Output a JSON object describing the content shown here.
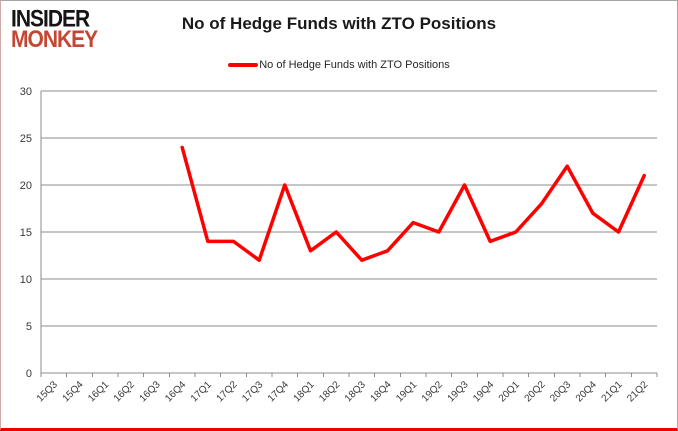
{
  "logo": {
    "line1": "INSIDER",
    "line2": "MONKEY"
  },
  "header": {
    "title": "No of Hedge Funds with ZTO Positions"
  },
  "legend": {
    "label": "No of Hedge Funds with ZTO Positions"
  },
  "colors": {
    "series": "#ff0000",
    "gridline": "#8c8c8c",
    "axis_text": "#3a3a3a",
    "logo_black": "#151515",
    "logo_red": "#c54632",
    "border_bottom": "#ec0000"
  },
  "chart_data": {
    "type": "line",
    "title": "No of Hedge Funds with ZTO Positions",
    "legend_entries": [
      "No of Hedge Funds with ZTO Positions"
    ],
    "legend_position": "top",
    "grid": true,
    "categories": [
      "15Q3",
      "15Q4",
      "16Q1",
      "16Q2",
      "16Q3",
      "16Q4",
      "17Q1",
      "17Q2",
      "17Q3",
      "17Q4",
      "18Q1",
      "18Q2",
      "18Q3",
      "18Q4",
      "19Q1",
      "19Q2",
      "19Q3",
      "19Q4",
      "20Q1",
      "20Q2",
      "20Q3",
      "20Q4",
      "21Q1",
      "21Q2"
    ],
    "values": [
      null,
      null,
      null,
      null,
      null,
      24,
      14,
      14,
      12,
      20,
      13,
      15,
      12,
      13,
      16,
      15,
      20,
      14,
      15,
      18,
      22,
      17,
      15,
      21
    ],
    "xlabel": "",
    "ylabel": "",
    "ylim": [
      0,
      30
    ],
    "yticks": [
      0,
      5,
      10,
      15,
      20,
      25,
      30
    ]
  }
}
